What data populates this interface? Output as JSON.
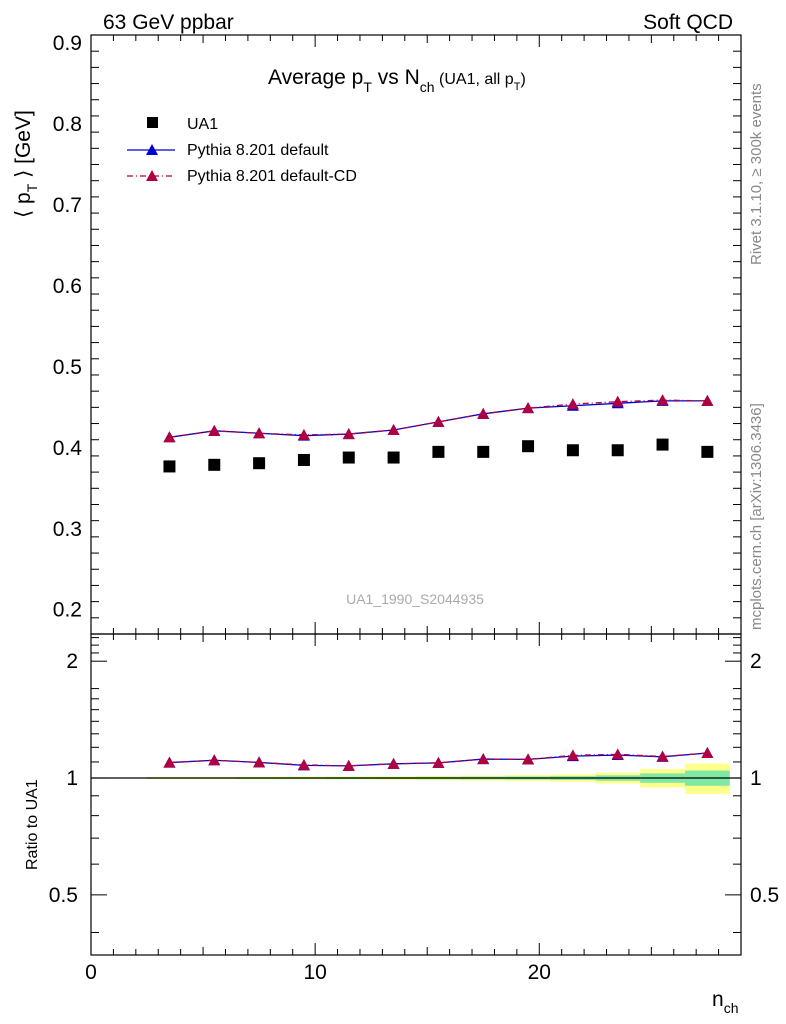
{
  "header": {
    "left": "63 GeV ppbar",
    "right": "Soft QCD"
  },
  "side_labels": {
    "rivet": "Rivet 3.1.10, ≥ 300k events",
    "mcplots": "mcplots.cern.ch [arXiv:1306.3436]"
  },
  "chart_data": [
    {
      "type": "scatter",
      "title_parts": {
        "main": "Average p",
        "main_sub": "T",
        "mid": " vs N",
        "mid_sub": "ch",
        "tail": " (UA1, all p",
        "tail_sub": "T",
        "tail_end": ")"
      },
      "ylabel_parts": {
        "open": "⟨ p",
        "sub": "T",
        "close": " ⟩ [GeV]"
      },
      "xlabel_parts": {
        "main": "n",
        "sub": "ch"
      },
      "xlim": [
        0,
        29
      ],
      "ylim": [
        0.17,
        0.91
      ],
      "yticks": [
        "0.2",
        "0.3",
        "0.4",
        "0.5",
        "0.6",
        "0.7",
        "0.8",
        "0.9"
      ],
      "watermark": "UA1_1990_S2044935",
      "legend_position": "top-left",
      "series": [
        {
          "name": "UA1",
          "marker": "square",
          "color": "#000000",
          "x": [
            3.5,
            5.5,
            7.5,
            9.5,
            11.5,
            13.5,
            15.5,
            17.5,
            19.5,
            21.5,
            23.5,
            25.5,
            27.5
          ],
          "y": [
            0.377,
            0.379,
            0.381,
            0.385,
            0.388,
            0.388,
            0.395,
            0.395,
            0.402,
            0.397,
            0.397,
            0.404,
            0.395
          ]
        },
        {
          "name": "Pythia 8.201 default",
          "marker": "triangle",
          "color": "#0000cc",
          "line": "solid",
          "x": [
            3.5,
            5.5,
            7.5,
            9.5,
            11.5,
            13.5,
            15.5,
            17.5,
            19.5,
            21.5,
            23.5,
            25.5,
            27.5
          ],
          "y": [
            0.413,
            0.421,
            0.418,
            0.415,
            0.417,
            0.422,
            0.432,
            0.442,
            0.449,
            0.452,
            0.455,
            0.458,
            0.458
          ]
        },
        {
          "name": "Pythia 8.201 default-CD",
          "marker": "triangle",
          "color": "#b00040",
          "line": "dashdot",
          "x": [
            3.5,
            5.5,
            7.5,
            9.5,
            11.5,
            13.5,
            15.5,
            17.5,
            19.5,
            21.5,
            23.5,
            25.5,
            27.5
          ],
          "y": [
            0.413,
            0.421,
            0.418,
            0.416,
            0.417,
            0.422,
            0.432,
            0.442,
            0.449,
            0.454,
            0.457,
            0.459,
            0.458
          ]
        }
      ]
    },
    {
      "type": "scatter",
      "ylabel": "Ratio to UA1",
      "xlim": [
        0,
        29
      ],
      "ylim": [
        0.35,
        2.35
      ],
      "yticks": [
        "0.5",
        "1",
        "2"
      ],
      "xticks": [
        "0",
        "10",
        "20"
      ],
      "uncertainty_band": {
        "x_edges": [
          2.5,
          4.5,
          6.5,
          8.5,
          10.5,
          12.5,
          14.5,
          16.5,
          18.5,
          20.5,
          22.5,
          24.5,
          26.5,
          28.5
        ],
        "inner": [
          0.004,
          0.004,
          0.005,
          0.005,
          0.006,
          0.006,
          0.007,
          0.008,
          0.009,
          0.011,
          0.016,
          0.028,
          0.045
        ],
        "outer": [
          0.007,
          0.007,
          0.008,
          0.009,
          0.01,
          0.011,
          0.013,
          0.015,
          0.018,
          0.022,
          0.032,
          0.055,
          0.09
        ],
        "inner_color": "#7fe8a4",
        "outer_color": "#ffff8c"
      },
      "series": [
        {
          "name": "Pythia 8.201 default",
          "color": "#0000cc",
          "x": [
            3.5,
            5.5,
            7.5,
            9.5,
            11.5,
            13.5,
            15.5,
            17.5,
            19.5,
            21.5,
            23.5,
            25.5,
            27.5
          ],
          "y": [
            1.096,
            1.111,
            1.097,
            1.078,
            1.075,
            1.088,
            1.094,
            1.119,
            1.117,
            1.139,
            1.146,
            1.134,
            1.16
          ]
        },
        {
          "name": "Pythia 8.201 default-CD",
          "color": "#b00040",
          "x": [
            3.5,
            5.5,
            7.5,
            9.5,
            11.5,
            13.5,
            15.5,
            17.5,
            19.5,
            21.5,
            23.5,
            25.5,
            27.5
          ],
          "y": [
            1.096,
            1.111,
            1.097,
            1.081,
            1.075,
            1.088,
            1.094,
            1.119,
            1.117,
            1.144,
            1.151,
            1.136,
            1.16
          ]
        }
      ]
    }
  ]
}
